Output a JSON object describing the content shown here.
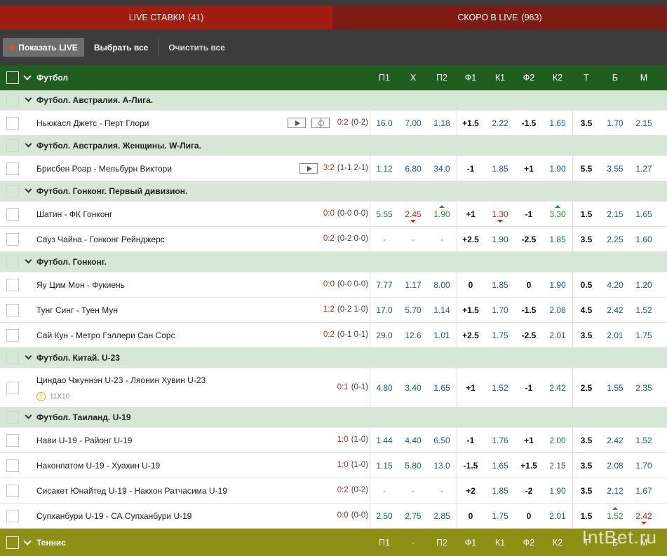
{
  "tabs": {
    "live": {
      "label": "LIVE СТАВКИ",
      "count": "(41)"
    },
    "soon": {
      "label": "СКОРО В LIVE",
      "count": "(963)"
    }
  },
  "toolbar": {
    "show_live": "Показать LIVE",
    "select_all": "Выбрать все",
    "clear_all": "Очистить все"
  },
  "columns": [
    "П1",
    "X",
    "П2",
    "Ф1",
    "К1",
    "Ф2",
    "К2",
    "Т",
    "Б",
    "М"
  ],
  "sports": {
    "football": "Футбол",
    "tennis": "Теннис",
    "tennis_columns": [
      "П1",
      "-",
      "П2",
      "Ф1",
      "К1",
      "Ф2",
      "К2",
      "Т",
      "Б",
      "М"
    ]
  },
  "leagues": [
    {
      "name": "Футбол. Австралия. А-Лига.",
      "events": [
        {
          "teams": "Ньюкасл Джетс - Перт Глори",
          "score": "0:2",
          "periods": "(0-2)",
          "video": true,
          "field": true,
          "odds": [
            "16.0",
            "7.00",
            "1.18",
            "+1.5",
            "2.22",
            "-1.5",
            "1.65",
            "3.5",
            "1.70",
            "2.15"
          ]
        }
      ]
    },
    {
      "name": "Футбол. Австралия. Женщины. W-Лига.",
      "events": [
        {
          "teams": "Брисбен Роар - Мельбурн Виктори",
          "score": "3:2",
          "periods": "(1-1 2-1)",
          "video": true,
          "odds": [
            "1.12",
            "6.80",
            "34.0",
            "-1",
            "1.85",
            "+1",
            "1.90",
            "5.5",
            "3.55",
            "1.27"
          ]
        }
      ]
    },
    {
      "name": "Футбол. Гонконг. Первый дивизион.",
      "events": [
        {
          "teams": "Шатин - ФК Гонконг",
          "score": "0:0",
          "periods": "(0-0 0-0)",
          "odds": [
            "5.55",
            "2.45",
            "1.90",
            "+1",
            "1.30",
            "-1",
            "3.30",
            "1.5",
            "2.15",
            "1.65"
          ],
          "trend": {
            "1": "down",
            "2": "up",
            "4": "down",
            "6": "up"
          }
        },
        {
          "teams": "Сауз Чайна - Гонконг Рейнджерс",
          "score": "0:2",
          "periods": "(0-2 0-0)",
          "odds": [
            "-",
            "-",
            "-",
            "+2.5",
            "1.90",
            "-2.5",
            "1.85",
            "3.5",
            "2.25",
            "1.60"
          ]
        }
      ]
    },
    {
      "name": "Футбол. Гонконг.",
      "events": [
        {
          "teams": "Яу Цим Мон - Фукиень",
          "score": "0:0",
          "periods": "(0-0 0-0)",
          "odds": [
            "7.77",
            "1.17",
            "8.00",
            "0",
            "1.85",
            "0",
            "1.90",
            "0.5",
            "4.20",
            "1.20"
          ]
        },
        {
          "teams": "Тунг Синг - Туен Мун",
          "score": "1:2",
          "periods": "(0-2 1-0)",
          "odds": [
            "17.0",
            "5.70",
            "1.14",
            "+1.5",
            "1.70",
            "-1.5",
            "2.08",
            "4.5",
            "2.42",
            "1.52"
          ]
        },
        {
          "teams": "Сай Кун - Метро Гэллери Сан Сорс",
          "score": "0:2",
          "periods": "(0-1 0-1)",
          "odds": [
            "29.0",
            "12.6",
            "1.01",
            "+2.5",
            "1.75",
            "-2.5",
            "2.01",
            "3.5",
            "2.01",
            "1.75"
          ]
        }
      ]
    },
    {
      "name": "Футбол. Китай. U-23",
      "events": [
        {
          "teams": "Циндао Чжуннэн U-23 - Ляонин Хувин U-23",
          "score": "0:1",
          "periods": "(0-1)",
          "info": "11X10",
          "odds": [
            "4.80",
            "3.40",
            "1.65",
            "+1",
            "1.52",
            "-1",
            "2.42",
            "2.5",
            "1.55",
            "2.35"
          ]
        }
      ]
    },
    {
      "name": "Футбол. Таиланд. U-19",
      "events": [
        {
          "teams": "Нави U-19 - Районг U-19",
          "score": "1:0",
          "periods": "(1-0)",
          "odds": [
            "1.44",
            "4.40",
            "6.50",
            "-1",
            "1.76",
            "+1",
            "2.00",
            "3.5",
            "2.42",
            "1.52"
          ]
        },
        {
          "teams": "Наконпатом U-19 - Хуахин U-19",
          "score": "1:0",
          "periods": "(1-0)",
          "odds": [
            "1.15",
            "5.80",
            "13.0",
            "-1.5",
            "1.65",
            "+1.5",
            "2.15",
            "3.5",
            "2.08",
            "1.70"
          ]
        },
        {
          "teams": "Сисакет Юнайтед U-19 - Накхон Ратчасима U-19",
          "score": "0:2",
          "periods": "(0-2)",
          "odds": [
            "-",
            "-",
            "-",
            "+2",
            "1.85",
            "-2",
            "1.90",
            "3.5",
            "2.12",
            "1.67"
          ]
        },
        {
          "teams": "Супханбури U-19 - СА Супханбури U-19",
          "score": "0:0",
          "periods": "(0-0)",
          "odds": [
            "2.50",
            "2.75",
            "2.85",
            "0",
            "1.75",
            "0",
            "2.01",
            "1.5",
            "1.52",
            "2.42"
          ],
          "trend": {
            "8": "up",
            "9": "down"
          }
        }
      ]
    }
  ],
  "watermark": "IntBet.ru"
}
